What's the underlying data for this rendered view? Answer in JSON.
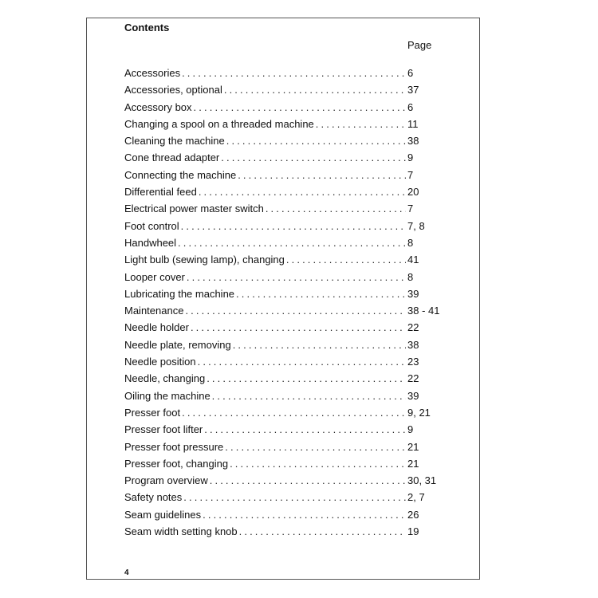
{
  "title": "Contents",
  "page_header": "Page",
  "entries": [
    {
      "label": "Accessories",
      "page": "6"
    },
    {
      "label": "Accessories, optional",
      "page": "37"
    },
    {
      "label": "Accessory box",
      "page": "6"
    },
    {
      "label": "Changing a spool on a threaded machine",
      "page": "11"
    },
    {
      "label": "Cleaning the machine",
      "page": "38"
    },
    {
      "label": "Cone thread adapter",
      "page": "9"
    },
    {
      "label": "Connecting the machine",
      "page": "7"
    },
    {
      "label": "Differential feed",
      "page": "20"
    },
    {
      "label": "Electrical power master switch",
      "page": "7"
    },
    {
      "label": "Foot control",
      "page": "7, 8"
    },
    {
      "label": "Handwheel",
      "page": "8"
    },
    {
      "label": "Light bulb (sewing lamp), changing",
      "page": "41"
    },
    {
      "label": "Looper cover",
      "page": "8"
    },
    {
      "label": "Lubricating the machine",
      "page": "39"
    },
    {
      "label": "Maintenance",
      "page": "38 - 41"
    },
    {
      "label": "Needle holder",
      "page": "22"
    },
    {
      "label": "Needle plate, removing",
      "page": "38"
    },
    {
      "label": "Needle position",
      "page": "23"
    },
    {
      "label": "Needle, changing",
      "page": "22"
    },
    {
      "label": "Oiling the machine",
      "page": "39"
    },
    {
      "label": "Presser foot",
      "page": "9, 21"
    },
    {
      "label": "Presser foot lifter",
      "page": "9"
    },
    {
      "label": "Presser foot pressure",
      "page": "21"
    },
    {
      "label": "Presser foot, changing",
      "page": "21"
    },
    {
      "label": "Program overview",
      "page": "30, 31"
    },
    {
      "label": "Safety notes",
      "page": "2, 7"
    },
    {
      "label": "Seam guidelines",
      "page": "26"
    },
    {
      "label": "Seam width setting knob",
      "page": "19"
    }
  ],
  "footer_page_number": "4"
}
